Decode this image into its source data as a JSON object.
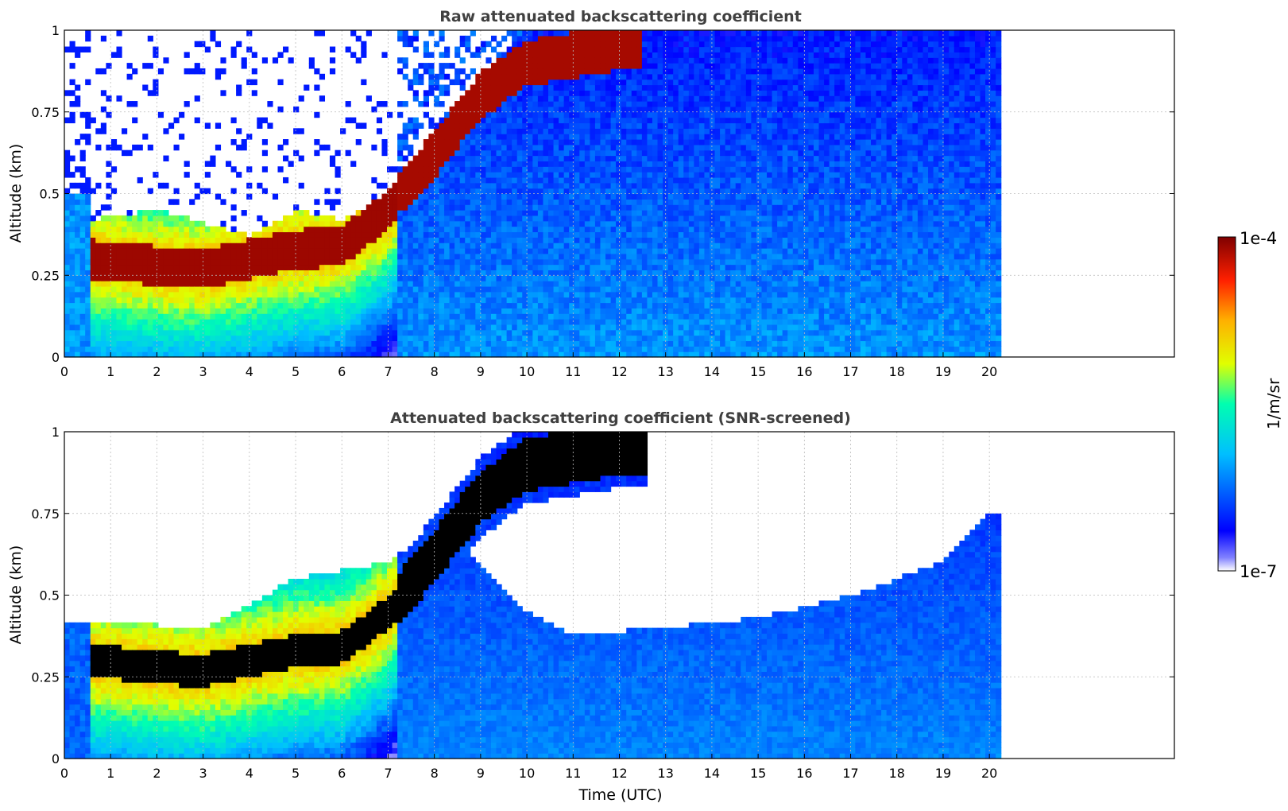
{
  "chart_data": [
    {
      "type": "heatmap",
      "title": "Raw attenuated backscattering coefficient",
      "xlabel": "",
      "ylabel": "Altitude (km)",
      "xlim": [
        0,
        24
      ],
      "ylim": [
        0,
        1
      ],
      "xticks": [
        "0",
        "1",
        "2",
        "3",
        "4",
        "5",
        "6",
        "7",
        "8",
        "9",
        "10",
        "11",
        "12",
        "13",
        "14",
        "15",
        "16",
        "17",
        "18",
        "19",
        "20"
      ],
      "yticks": [
        "0",
        "0.25",
        "0.5",
        "0.75",
        "1"
      ],
      "grid": true,
      "data_end_time": 20.25,
      "features": {
        "boundary_layer_top_km": [
          [
            0.6,
            0.42
          ],
          [
            2,
            0.45
          ],
          [
            3.3,
            0.4
          ],
          [
            4,
            0.37
          ],
          [
            5,
            0.45
          ],
          [
            6,
            0.42
          ],
          [
            7,
            0.5
          ],
          [
            8,
            0.68
          ],
          [
            9,
            0.85
          ],
          [
            10,
            1.0
          ],
          [
            12,
            1.0
          ]
        ],
        "aerosol_layer_center_km": [
          [
            0.6,
            0.3
          ],
          [
            2,
            0.28
          ],
          [
            3,
            0.27
          ],
          [
            4,
            0.3
          ],
          [
            5,
            0.33
          ],
          [
            6,
            0.34
          ],
          [
            7,
            0.45
          ],
          [
            8,
            0.62
          ],
          [
            9,
            0.8
          ],
          [
            10,
            0.9
          ],
          [
            12,
            0.95
          ]
        ],
        "clear_air_near_surface": "1e-6 to 1e-5 after 7 UTC"
      }
    },
    {
      "type": "heatmap",
      "title": "Attenuated backscattering coefficient (SNR-screened)",
      "xlabel": "Time (UTC)",
      "ylabel": "Altitude (km)",
      "xlim": [
        0,
        24
      ],
      "ylim": [
        0,
        1
      ],
      "xticks": [
        "0",
        "1",
        "2",
        "3",
        "4",
        "5",
        "6",
        "7",
        "8",
        "9",
        "10",
        "11",
        "12",
        "13",
        "14",
        "15",
        "16",
        "17",
        "18",
        "19",
        "20"
      ],
      "yticks": [
        "0",
        "0.25",
        "0.5",
        "0.75",
        "1"
      ],
      "grid": true,
      "data_end_time": 20.25,
      "features": {
        "screened_top_km": [
          [
            0.6,
            0.42
          ],
          [
            3,
            0.4
          ],
          [
            5,
            0.55
          ],
          [
            7,
            0.6
          ],
          [
            8,
            0.7
          ],
          [
            9,
            0.6
          ],
          [
            10,
            0.45
          ],
          [
            11,
            0.38
          ],
          [
            13,
            0.4
          ],
          [
            15,
            0.43
          ],
          [
            17,
            0.5
          ],
          [
            18,
            0.55
          ],
          [
            19,
            0.6
          ],
          [
            20,
            0.75
          ]
        ]
      }
    }
  ],
  "colorbar": {
    "label": "1/m/sr",
    "max_label": "1e-4",
    "min_label": "1e-7",
    "scale": "log",
    "range": [
      1e-07,
      0.0001
    ],
    "colormap": "jet"
  }
}
